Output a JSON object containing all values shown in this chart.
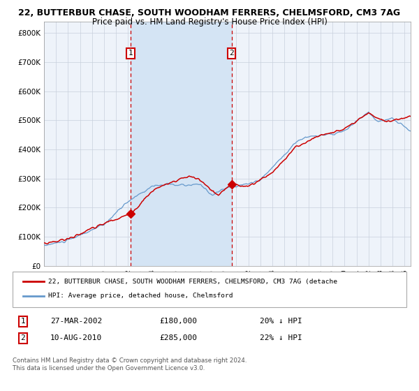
{
  "title": "22, BUTTERBUR CHASE, SOUTH WOODHAM FERRERS, CHELMSFORD, CM3 7AG",
  "subtitle": "Price paid vs. HM Land Registry's House Price Index (HPI)",
  "legend_red": "22, BUTTERBUR CHASE, SOUTH WOODHAM FERRERS, CHELMSFORD, CM3 7AG (detache",
  "legend_blue": "HPI: Average price, detached house, Chelmsford",
  "transaction1_label": "1",
  "transaction1_date": "27-MAR-2002",
  "transaction1_price": "£180,000",
  "transaction1_hpi": "20% ↓ HPI",
  "transaction2_label": "2",
  "transaction2_date": "10-AUG-2010",
  "transaction2_price": "£285,000",
  "transaction2_hpi": "22% ↓ HPI",
  "footnote": "Contains HM Land Registry data © Crown copyright and database right 2024.\nThis data is licensed under the Open Government Licence v3.0.",
  "ylim_bottom": 0,
  "ylim_top": 840000,
  "background_color": "#ffffff",
  "plot_bg": "#eef3fa",
  "grid_color": "#c8d0dc",
  "red_color": "#cc0000",
  "blue_color": "#6699cc",
  "shaded_color": "#d4e4f4",
  "transaction1_x_year": 2002.2,
  "transaction2_x_year": 2010.6,
  "transaction1_y": 180000,
  "transaction2_y": 285000,
  "xmin": 1995.0,
  "xmax": 2025.5,
  "yticks": [
    0,
    100000,
    200000,
    300000,
    400000,
    500000,
    600000,
    700000,
    800000
  ],
  "yticklabels": [
    "£0",
    "£100K",
    "£200K",
    "£300K",
    "£400K",
    "£500K",
    "£600K",
    "£700K",
    "£800K"
  ]
}
